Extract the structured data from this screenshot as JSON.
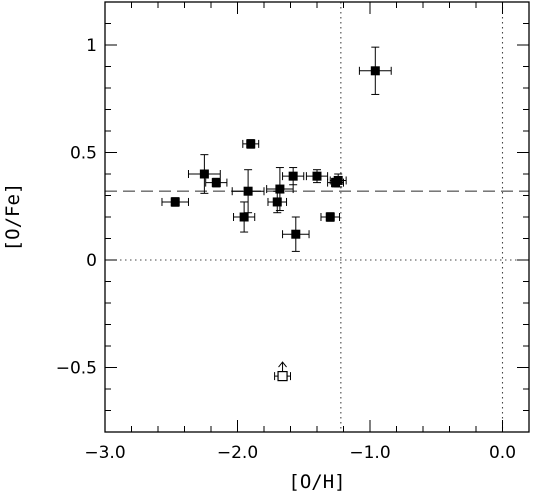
{
  "chart_data": {
    "type": "scatter",
    "xlabel": "[O/H]",
    "ylabel": "[O/Fe]",
    "xlim": [
      -3.0,
      0.2
    ],
    "ylim": [
      -0.8,
      1.2
    ],
    "x_ticks": [
      {
        "value": -3.0,
        "label": "−3.0"
      },
      {
        "value": -2.0,
        "label": "−2.0"
      },
      {
        "value": -1.0,
        "label": "−1.0"
      },
      {
        "value": 0.0,
        "label": "0.0"
      }
    ],
    "y_ticks": [
      {
        "value": -0.5,
        "label": "−0.5"
      },
      {
        "value": 0.0,
        "label": "0"
      },
      {
        "value": 0.5,
        "label": "0.5"
      },
      {
        "value": 1.0,
        "label": "1"
      }
    ],
    "x_minor_step": 0.2,
    "y_minor_step": 0.1,
    "grid": false,
    "reference_lines": [
      {
        "orientation": "horizontal",
        "value": 0.32,
        "style": "dashed"
      },
      {
        "orientation": "horizontal",
        "value": 0.0,
        "style": "dotted"
      },
      {
        "orientation": "vertical",
        "value": -1.22,
        "style": "dotted"
      },
      {
        "orientation": "vertical",
        "value": 0.0,
        "style": "dotted"
      }
    ],
    "points": [
      {
        "x": -0.96,
        "y": 0.88,
        "xerr": 0.12,
        "yerr": 0.11
      },
      {
        "x": -1.9,
        "y": 0.54,
        "xerr": 0.06,
        "yerr": 0.02
      },
      {
        "x": -2.25,
        "y": 0.4,
        "xerr": 0.12,
        "yerr": 0.09
      },
      {
        "x": -2.16,
        "y": 0.36,
        "xerr": 0.08,
        "yerr": 0.02
      },
      {
        "x": -2.47,
        "y": 0.27,
        "xerr": 0.1,
        "yerr": 0.02
      },
      {
        "x": -1.92,
        "y": 0.32,
        "xerr": 0.12,
        "yerr": 0.1
      },
      {
        "x": -1.95,
        "y": 0.2,
        "xerr": 0.08,
        "yerr": 0.07
      },
      {
        "x": -1.68,
        "y": 0.33,
        "xerr": 0.1,
        "yerr": 0.1
      },
      {
        "x": -1.7,
        "y": 0.27,
        "xerr": 0.07,
        "yerr": 0.05
      },
      {
        "x": -1.58,
        "y": 0.39,
        "xerr": 0.08,
        "yerr": 0.04
      },
      {
        "x": -1.4,
        "y": 0.39,
        "xerr": 0.08,
        "yerr": 0.03
      },
      {
        "x": -1.56,
        "y": 0.12,
        "xerr": 0.1,
        "yerr": 0.08
      },
      {
        "x": -1.24,
        "y": 0.37,
        "xerr": 0.06,
        "yerr": 0.03
      },
      {
        "x": -1.26,
        "y": 0.36,
        "xerr": 0.06,
        "yerr": 0.02
      },
      {
        "x": -1.3,
        "y": 0.2,
        "xerr": 0.07,
        "yerr": 0.02
      }
    ],
    "lower_limits": [
      {
        "x": -1.66,
        "y": -0.54,
        "xerr": 0.06,
        "marker": "open-square"
      }
    ]
  }
}
